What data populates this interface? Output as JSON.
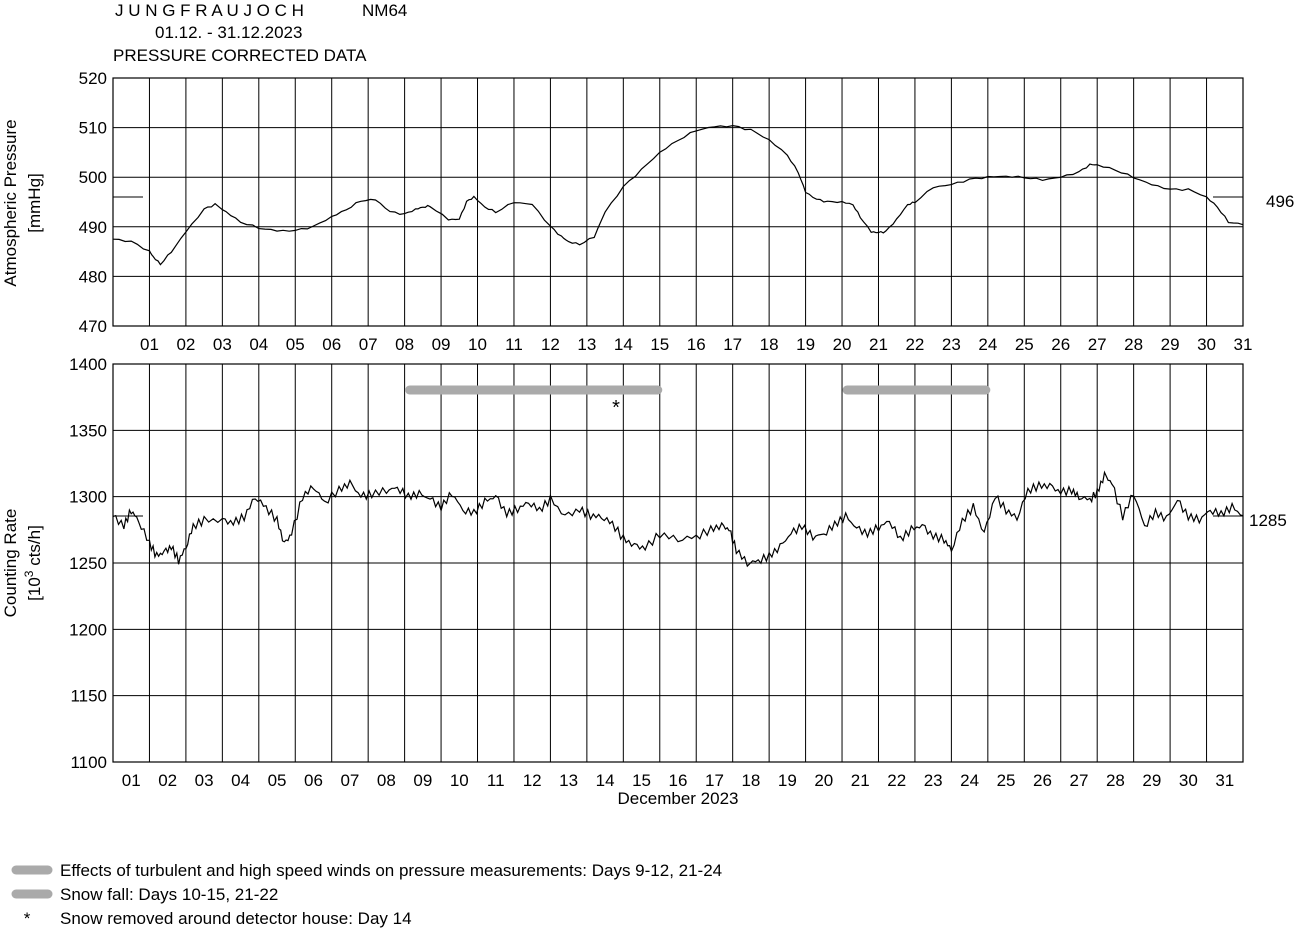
{
  "header": {
    "station": "J U N G F R A U J O C H",
    "monitor": "NM64",
    "period": "01.12. - 31.12.2023",
    "subtitle": "PRESSURE CORRECTED DATA"
  },
  "chart_data": [
    {
      "type": "line",
      "name": "pressure",
      "ylabel": "Atmospheric Pressure",
      "yunit": "[mmHg]",
      "ylim": [
        470,
        520
      ],
      "yticks": [
        470,
        480,
        490,
        500,
        510,
        520
      ],
      "xlim": [
        0,
        31
      ],
      "day_labels": [
        "01",
        "02",
        "03",
        "04",
        "05",
        "06",
        "07",
        "08",
        "09",
        "10",
        "11",
        "12",
        "13",
        "14",
        "15",
        "16",
        "17",
        "18",
        "19",
        "20",
        "21",
        "22",
        "23",
        "24",
        "25",
        "26",
        "27",
        "28",
        "29",
        "30",
        "31"
      ],
      "grid": true,
      "reference_value": "496",
      "series": [
        {
          "x": [
            0,
            0.5,
            1,
            1.1,
            1.3,
            1.6,
            2.0,
            2.5,
            2.8,
            3.1,
            3.5,
            4.0,
            4.5,
            5.0,
            5.5,
            6.0,
            6.4,
            6.8,
            7.2,
            7.6,
            8.0,
            8.3,
            8.5,
            8.7,
            9.2,
            9.5,
            9.7,
            9.9,
            10.2,
            10.5,
            11.0,
            11.5,
            12.0,
            12.3,
            12.5,
            12.8,
            13.2,
            13.5,
            14.0,
            14.5,
            15.0,
            15.5,
            16.0,
            16.5,
            17.0,
            17.5,
            18.0,
            18.5,
            18.8,
            19.0,
            19.3,
            19.6,
            20.0,
            20.3,
            20.5,
            20.8,
            21.0,
            21.2,
            21.5,
            21.8,
            22.0,
            22.5,
            23.0,
            23.5,
            24.0,
            24.5,
            25.0,
            25.5,
            26.0,
            26.5,
            26.8,
            27.0,
            27.5,
            28.0,
            28.5,
            29.0,
            29.5,
            30.0,
            30.3,
            30.6,
            31.0
          ],
          "y": [
            487.5,
            487,
            485,
            484,
            482.5,
            485,
            489,
            493.5,
            494.5,
            493,
            491,
            489.8,
            489.2,
            489.2,
            490,
            492,
            493.5,
            495.3,
            495.5,
            493,
            492.5,
            493.5,
            494,
            494.2,
            491.5,
            491.5,
            495,
            496,
            494,
            493,
            495,
            494.5,
            490,
            488,
            487,
            486.5,
            488,
            493,
            498,
            501.5,
            505,
            507.5,
            509.5,
            510.2,
            510.3,
            509.5,
            507.5,
            504.5,
            501,
            497,
            495.5,
            495,
            495,
            494.5,
            492,
            489,
            488.8,
            489,
            491.5,
            494.5,
            495,
            498,
            498.5,
            499.5,
            500,
            500.2,
            500,
            499.5,
            500,
            501,
            502.5,
            502.5,
            501.5,
            500,
            498.5,
            497.5,
            497.5,
            496,
            494,
            491,
            490.5
          ]
        }
      ]
    },
    {
      "type": "line",
      "name": "counting-rate",
      "ylabel": "Counting Rate",
      "yunit": "[10^3 cts/h]",
      "yunit_parts": {
        "pre": "[10",
        "exp": "3",
        "post": " cts/h]"
      },
      "ylim": [
        1100,
        1400
      ],
      "yticks": [
        1100,
        1150,
        1200,
        1250,
        1300,
        1350,
        1400
      ],
      "xlim": [
        0,
        31
      ],
      "xlabel": "December 2023",
      "day_labels": [
        "01",
        "02",
        "03",
        "04",
        "05",
        "06",
        "07",
        "08",
        "09",
        "10",
        "11",
        "12",
        "13",
        "14",
        "15",
        "16",
        "17",
        "18",
        "19",
        "20",
        "21",
        "22",
        "23",
        "24",
        "25",
        "26",
        "27",
        "28",
        "29",
        "30",
        "31"
      ],
      "grid": true,
      "reference_value": "1285",
      "series": [
        {
          "x": [
            0,
            0.3,
            0.5,
            0.7,
            1.0,
            1.2,
            1.4,
            1.6,
            1.8,
            2.0,
            2.2,
            2.5,
            3.0,
            3.3,
            3.6,
            3.9,
            4.2,
            4.5,
            4.7,
            4.9,
            5.2,
            5.5,
            5.8,
            6.2,
            6.5,
            6.8,
            7.1,
            7.5,
            7.8,
            8.1,
            8.4,
            8.7,
            9.0,
            9.3,
            9.6,
            9.9,
            10.2,
            10.5,
            10.8,
            11.1,
            11.4,
            11.7,
            12.0,
            12.4,
            12.8,
            13.1,
            13.4,
            13.7,
            14.0,
            14.3,
            14.6,
            15.0,
            15.5,
            16.0,
            16.4,
            16.7,
            16.9,
            17.1,
            17.4,
            17.7,
            18.0,
            18.3,
            18.6,
            18.9,
            19.2,
            19.5,
            19.8,
            20.1,
            20.4,
            20.7,
            21.0,
            21.3,
            21.6,
            21.9,
            22.2,
            22.5,
            22.8,
            23.0,
            23.3,
            23.6,
            23.9,
            24.2,
            24.5,
            24.8,
            25.1,
            25.4,
            25.7,
            26.0,
            26.3,
            26.5,
            26.8,
            27.0,
            27.2,
            27.4,
            27.7,
            28.0,
            28.3,
            28.6,
            28.9,
            29.2,
            29.5,
            29.8,
            30.1,
            30.4,
            30.7,
            31.0
          ],
          "y": [
            1285,
            1278,
            1290,
            1282,
            1265,
            1255,
            1258,
            1262,
            1252,
            1262,
            1278,
            1282,
            1282,
            1280,
            1285,
            1300,
            1292,
            1282,
            1264,
            1272,
            1300,
            1308,
            1296,
            1305,
            1310,
            1300,
            1302,
            1305,
            1307,
            1300,
            1302,
            1298,
            1292,
            1303,
            1290,
            1288,
            1296,
            1300,
            1287,
            1291,
            1296,
            1290,
            1298,
            1285,
            1290,
            1286,
            1285,
            1280,
            1268,
            1263,
            1261,
            1272,
            1268,
            1270,
            1275,
            1278,
            1275,
            1260,
            1250,
            1252,
            1255,
            1262,
            1272,
            1278,
            1270,
            1272,
            1279,
            1285,
            1276,
            1272,
            1277,
            1282,
            1268,
            1275,
            1278,
            1270,
            1268,
            1260,
            1282,
            1292,
            1272,
            1300,
            1290,
            1284,
            1305,
            1308,
            1308,
            1303,
            1305,
            1300,
            1298,
            1303,
            1316,
            1310,
            1285,
            1303,
            1278,
            1288,
            1283,
            1297,
            1285,
            1283,
            1290,
            1287,
            1292,
            1285
          ]
        }
      ],
      "annotations": [
        {
          "type": "band",
          "x0": 8,
          "x1": 15
        },
        {
          "type": "band",
          "x0": 20,
          "x1": 24
        },
        {
          "type": "marker",
          "symbol": "*",
          "x": 13.8,
          "y": 1370
        }
      ]
    }
  ],
  "legend": [
    {
      "kind": "bar",
      "text": "Effects of turbulent and high speed winds on pressure measurements: Days 9-12, 21-24"
    },
    {
      "kind": "bar",
      "text": "Snow fall: Days 10-15, 21-22"
    },
    {
      "kind": "star",
      "symbol": "*",
      "text": "Snow removed around detector house: Day 14"
    }
  ],
  "colors": {
    "band": "#aaaaaa",
    "line": "#000000",
    "grid": "#000000"
  }
}
